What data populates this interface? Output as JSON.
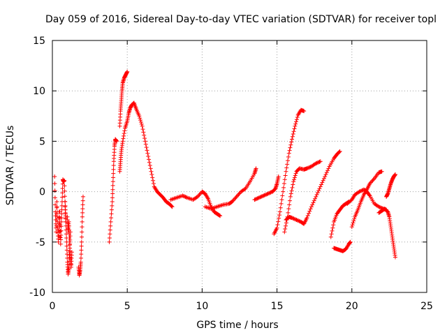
{
  "chart_data": {
    "type": "scatter",
    "title": "Day 059 of 2016, Sidereal Day-to-day VTEC variation (SDTVAR) for receiver topl",
    "xlabel": "GPS time / hours",
    "ylabel": "SDTVAR / TECUs",
    "xlim": [
      0,
      25
    ],
    "ylim": [
      -10,
      15
    ],
    "xticks": [
      0,
      5,
      10,
      15,
      20,
      25
    ],
    "yticks": [
      -10,
      -5,
      0,
      5,
      10,
      15
    ],
    "xtick_labels": [
      "0",
      "5",
      "10",
      "15",
      "20",
      "25"
    ],
    "ytick_labels": [
      "-10",
      "-5",
      "0",
      "5",
      "10",
      "15"
    ],
    "grid": true,
    "marker": "+",
    "marker_color": "#ff0000",
    "series": [
      {
        "name": "s1",
        "points": [
          [
            0.15,
            1.5
          ],
          [
            0.2,
            -2
          ],
          [
            0.25,
            -4
          ],
          [
            0.3,
            -1
          ],
          [
            0.35,
            -3.5
          ],
          [
            0.4,
            -5
          ],
          [
            0.45,
            -2
          ],
          [
            0.5,
            -4.5
          ]
        ]
      },
      {
        "name": "s2",
        "points": [
          [
            0.5,
            -2
          ],
          [
            0.55,
            -5.2
          ],
          [
            0.6,
            -3
          ],
          [
            0.65,
            -1
          ],
          [
            0.7,
            1.2
          ],
          [
            0.75,
            1
          ],
          [
            0.8,
            1.1
          ],
          [
            0.85,
            -1.5
          ],
          [
            0.9,
            -3
          ]
        ]
      },
      {
        "name": "s3",
        "points": [
          [
            0.85,
            -1
          ],
          [
            0.9,
            -3
          ],
          [
            0.95,
            -5
          ],
          [
            1.0,
            -7
          ],
          [
            1.05,
            -8.2
          ],
          [
            1.1,
            -7.5
          ],
          [
            1.15,
            -6
          ],
          [
            1.2,
            -4
          ]
        ]
      },
      {
        "name": "s4",
        "points": [
          [
            1.0,
            -2.5
          ],
          [
            1.05,
            -4
          ],
          [
            1.1,
            -3
          ],
          [
            1.15,
            -5
          ],
          [
            1.2,
            -6.5
          ],
          [
            1.25,
            -7.5
          ],
          [
            1.3,
            -6
          ]
        ]
      },
      {
        "name": "s5",
        "points": [
          [
            1.75,
            -7.5
          ],
          [
            1.8,
            -8.3
          ],
          [
            1.85,
            -7.8
          ],
          [
            1.9,
            -7
          ],
          [
            1.95,
            -5
          ],
          [
            2.0,
            -2.5
          ],
          [
            2.05,
            -0.5
          ]
        ]
      },
      {
        "name": "s6",
        "points": [
          [
            3.8,
            -5
          ],
          [
            3.9,
            -3
          ],
          [
            4.0,
            -1
          ],
          [
            4.05,
            1
          ],
          [
            4.1,
            3
          ],
          [
            4.15,
            4.5
          ],
          [
            4.2,
            5.2
          ],
          [
            4.3,
            5
          ]
        ]
      },
      {
        "name": "s7",
        "points": [
          [
            4.5,
            6.5
          ],
          [
            4.55,
            8
          ],
          [
            4.6,
            9
          ],
          [
            4.65,
            10
          ],
          [
            4.7,
            10.8
          ],
          [
            4.8,
            11.3
          ],
          [
            4.9,
            11.6
          ],
          [
            5.0,
            11.9
          ]
        ]
      },
      {
        "name": "s8",
        "points": [
          [
            4.5,
            2
          ],
          [
            4.55,
            3
          ],
          [
            4.6,
            4
          ],
          [
            4.7,
            5
          ],
          [
            4.85,
            6.3
          ],
          [
            5.0,
            7
          ],
          [
            5.1,
            7.8
          ],
          [
            5.2,
            8.3
          ],
          [
            5.3,
            8.6
          ],
          [
            5.45,
            8.8
          ]
        ]
      },
      {
        "name": "s9",
        "points": [
          [
            5.45,
            8.8
          ],
          [
            5.6,
            8.2
          ],
          [
            5.8,
            7.5
          ],
          [
            6.0,
            6.5
          ],
          [
            6.2,
            5
          ],
          [
            6.4,
            3.5
          ],
          [
            6.6,
            2
          ],
          [
            6.8,
            0.5
          ],
          [
            7.0,
            0
          ],
          [
            7.2,
            -0.3
          ],
          [
            7.4,
            -0.6
          ],
          [
            7.6,
            -1
          ],
          [
            7.8,
            -1.2
          ],
          [
            8.0,
            -1.5
          ]
        ]
      },
      {
        "name": "s10",
        "points": [
          [
            7.9,
            -0.8
          ],
          [
            8.3,
            -0.6
          ],
          [
            8.7,
            -0.4
          ],
          [
            9.0,
            -0.6
          ],
          [
            9.4,
            -0.8
          ],
          [
            9.7,
            -0.5
          ],
          [
            10.0,
            0
          ],
          [
            10.2,
            -0.2
          ],
          [
            10.4,
            -0.7
          ],
          [
            10.6,
            -1.5
          ],
          [
            10.8,
            -2
          ],
          [
            11.0,
            -2.2
          ],
          [
            11.2,
            -2.4
          ]
        ]
      },
      {
        "name": "s11",
        "points": [
          [
            10.2,
            -1.5
          ],
          [
            10.6,
            -1.7
          ],
          [
            11.0,
            -1.5
          ],
          [
            11.4,
            -1.3
          ],
          [
            11.8,
            -1.2
          ],
          [
            12.0,
            -1
          ],
          [
            12.3,
            -0.5
          ],
          [
            12.6,
            0
          ],
          [
            12.9,
            0.3
          ],
          [
            13.2,
            1
          ],
          [
            13.5,
            1.8
          ],
          [
            13.6,
            2.3
          ]
        ]
      },
      {
        "name": "s12",
        "points": [
          [
            13.5,
            -0.8
          ],
          [
            13.8,
            -0.6
          ],
          [
            14.1,
            -0.4
          ],
          [
            14.4,
            -0.2
          ],
          [
            14.7,
            0
          ],
          [
            14.9,
            0.3
          ],
          [
            15.0,
            0.8
          ],
          [
            15.1,
            1.5
          ]
        ]
      },
      {
        "name": "s13",
        "points": [
          [
            14.8,
            -4.2
          ],
          [
            15.0,
            -3.6
          ],
          [
            15.2,
            -2
          ],
          [
            15.4,
            0
          ],
          [
            15.6,
            2
          ],
          [
            15.8,
            3.8
          ],
          [
            16.0,
            5.2
          ],
          [
            16.2,
            6.5
          ],
          [
            16.4,
            7.6
          ],
          [
            16.6,
            8.1
          ],
          [
            16.8,
            8
          ]
        ]
      },
      {
        "name": "s14",
        "points": [
          [
            15.5,
            -4
          ],
          [
            15.7,
            -2.5
          ],
          [
            15.9,
            -0.5
          ],
          [
            16.1,
            1
          ],
          [
            16.3,
            2
          ],
          [
            16.5,
            2.3
          ],
          [
            16.8,
            2.2
          ],
          [
            17.0,
            2.3
          ],
          [
            17.3,
            2.5
          ],
          [
            17.6,
            2.8
          ],
          [
            17.9,
            3
          ]
        ]
      },
      {
        "name": "s15",
        "points": [
          [
            15.6,
            -2.8
          ],
          [
            15.8,
            -2.5
          ],
          [
            16.0,
            -2.6
          ],
          [
            16.3,
            -2.8
          ],
          [
            16.6,
            -3
          ],
          [
            16.8,
            -3.2
          ],
          [
            17.0,
            -2.6
          ],
          [
            17.3,
            -1.5
          ],
          [
            17.6,
            -0.5
          ],
          [
            17.9,
            0.5
          ],
          [
            18.2,
            1.5
          ],
          [
            18.5,
            2.5
          ],
          [
            18.8,
            3.3
          ],
          [
            19.0,
            3.7
          ],
          [
            19.2,
            4
          ]
        ]
      },
      {
        "name": "s16",
        "points": [
          [
            18.6,
            -4.5
          ],
          [
            18.8,
            -3
          ],
          [
            19.0,
            -2.2
          ],
          [
            19.2,
            -1.8
          ],
          [
            19.4,
            -1.4
          ],
          [
            19.6,
            -1.2
          ],
          [
            19.8,
            -1
          ]
        ]
      },
      {
        "name": "s17",
        "points": [
          [
            18.8,
            -5.6
          ],
          [
            19.0,
            -5.7
          ],
          [
            19.2,
            -5.8
          ],
          [
            19.4,
            -5.9
          ],
          [
            19.6,
            -5.7
          ],
          [
            19.8,
            -5.2
          ],
          [
            19.9,
            -5
          ]
        ]
      },
      {
        "name": "s18",
        "points": [
          [
            19.7,
            -1.2
          ],
          [
            20.0,
            -0.8
          ],
          [
            20.2,
            -0.3
          ],
          [
            20.5,
            0
          ],
          [
            20.8,
            0.2
          ],
          [
            21.0,
            0
          ],
          [
            21.2,
            -0.4
          ],
          [
            21.5,
            -1.2
          ],
          [
            21.8,
            -1.5
          ],
          [
            22.1,
            -1.7
          ],
          [
            22.3,
            -1.8
          ]
        ]
      },
      {
        "name": "s19",
        "points": [
          [
            20.0,
            -3.5
          ],
          [
            20.2,
            -2.5
          ],
          [
            20.4,
            -1.8
          ],
          [
            20.6,
            -1
          ],
          [
            20.8,
            -0.3
          ],
          [
            21.0,
            0.2
          ],
          [
            21.2,
            0.8
          ],
          [
            21.5,
            1.3
          ],
          [
            21.8,
            1.9
          ],
          [
            22.0,
            2
          ]
        ]
      },
      {
        "name": "s20",
        "points": [
          [
            21.8,
            -2.1
          ],
          [
            22.0,
            -1.9
          ],
          [
            22.2,
            -1.7
          ],
          [
            22.4,
            -2
          ],
          [
            22.5,
            -2.5
          ],
          [
            22.6,
            -3.5
          ],
          [
            22.7,
            -4.5
          ],
          [
            22.8,
            -5.5
          ],
          [
            22.9,
            -6.5
          ]
        ]
      },
      {
        "name": "s21",
        "points": [
          [
            22.3,
            -0.5
          ],
          [
            22.4,
            -0.2
          ],
          [
            22.5,
            0.3
          ],
          [
            22.6,
            0.8
          ],
          [
            22.7,
            1.2
          ],
          [
            22.8,
            1.5
          ],
          [
            22.9,
            1.7
          ]
        ]
      }
    ]
  }
}
